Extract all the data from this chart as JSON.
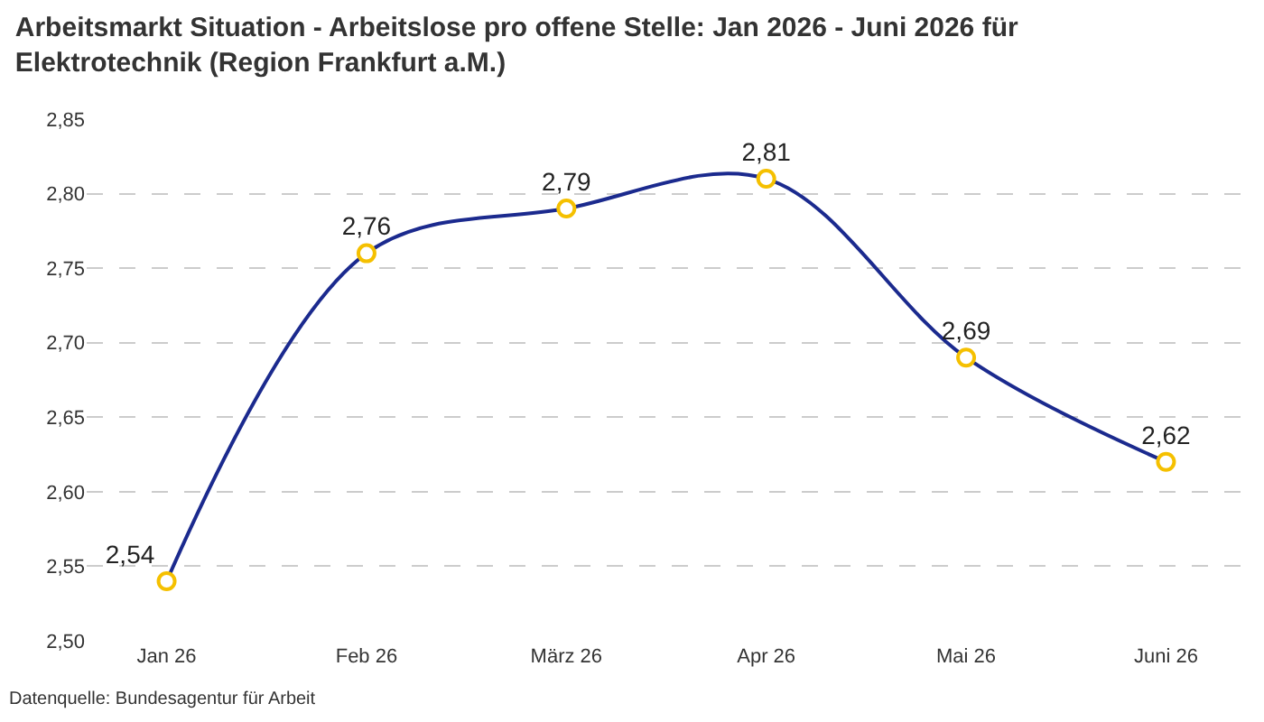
{
  "chart_data": {
    "type": "line",
    "title": "Arbeitsmarkt Situation - Arbeitslose pro offene Stelle: Jan 2026 - Juni 2026 für Elektrotechnik (Region Frankfurt a.M.)",
    "categories": [
      "Jan 26",
      "Feb 26",
      "März 26",
      "Apr 26",
      "Mai 26",
      "Juni 26"
    ],
    "series": [
      {
        "color": "#1b2a8e",
        "values": [
          2.54,
          2.76,
          2.79,
          2.81,
          2.69,
          2.62
        ],
        "value_labels": [
          "2,54",
          "2,76",
          "2,79",
          "2,81",
          "2,69",
          "2,62"
        ]
      }
    ],
    "ylim": [
      2.5,
      2.85
    ],
    "yticks": [
      {
        "value": 2.5,
        "label": "2,50"
      },
      {
        "value": 2.55,
        "label": "2,55"
      },
      {
        "value": 2.6,
        "label": "2,60"
      },
      {
        "value": 2.65,
        "label": "2,65"
      },
      {
        "value": 2.7,
        "label": "2,70"
      },
      {
        "value": 2.75,
        "label": "2,75"
      },
      {
        "value": 2.8,
        "label": "2,80"
      },
      {
        "value": 2.85,
        "label": "2,85"
      }
    ],
    "grid": "y",
    "legend": false,
    "marker": "circle",
    "line_style": "solid",
    "annotations": [
      "Datenquelle: Bundesagentur für Arbeit"
    ]
  }
}
